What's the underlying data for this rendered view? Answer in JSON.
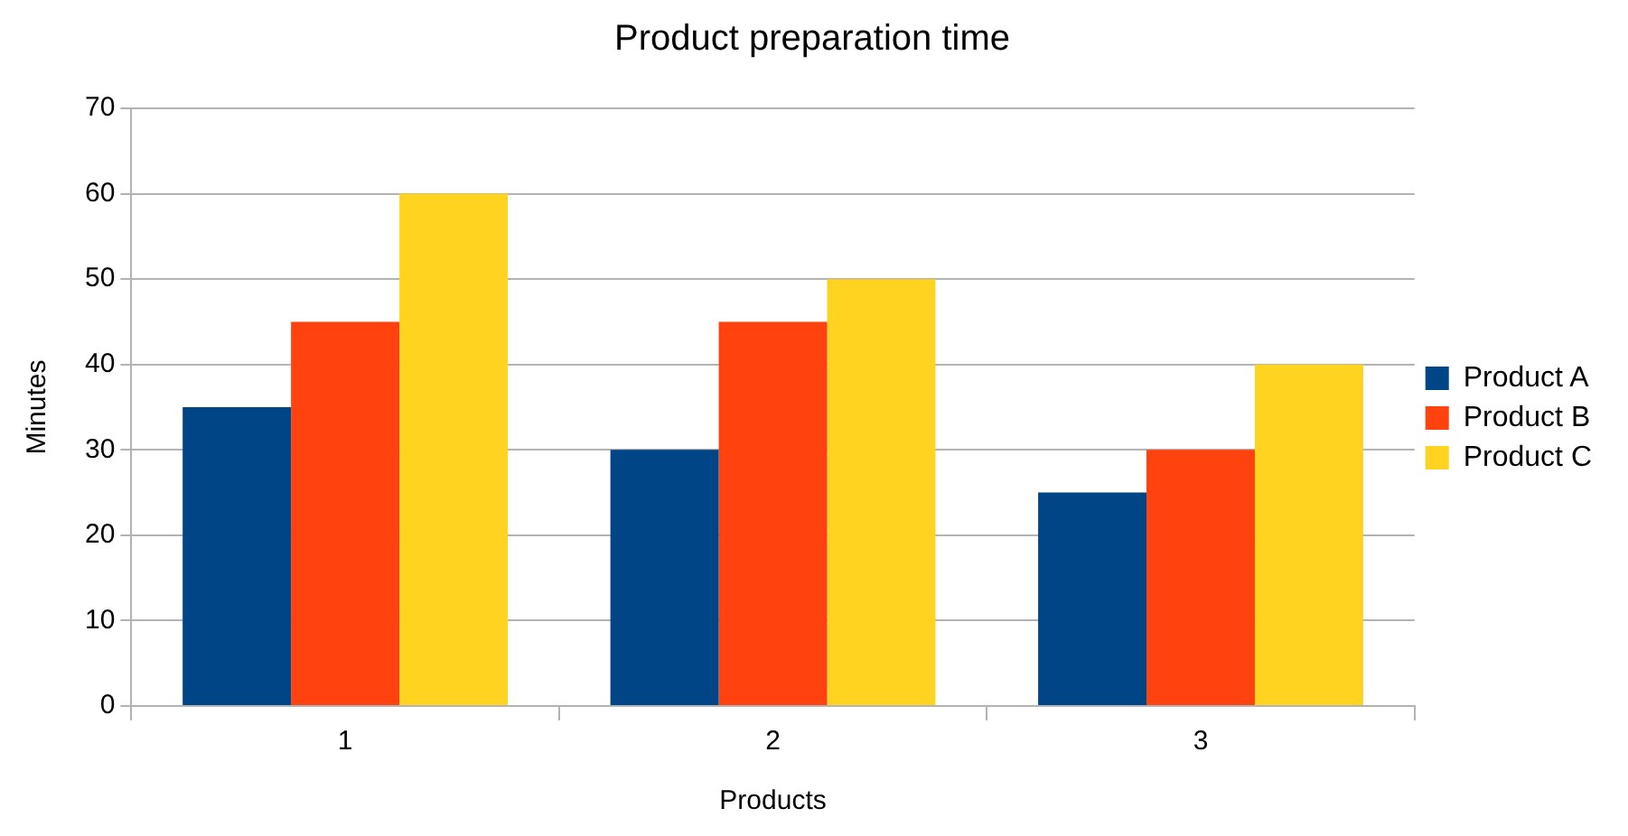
{
  "chart_data": {
    "type": "bar",
    "title": "Product preparation time",
    "xlabel": "Products",
    "ylabel": "Minutes",
    "categories": [
      "1",
      "2",
      "3"
    ],
    "series": [
      {
        "name": "Product A",
        "color": "#004586",
        "values": [
          35,
          30,
          25
        ]
      },
      {
        "name": "Product B",
        "color": "#ff420e",
        "values": [
          45,
          45,
          30
        ]
      },
      {
        "name": "Product C",
        "color": "#ffd320",
        "values": [
          60,
          50,
          40
        ]
      }
    ],
    "ylim": [
      0,
      70
    ],
    "yticks": [
      0,
      10,
      20,
      30,
      40,
      50,
      60,
      70
    ],
    "grid": "y",
    "legend": "right"
  }
}
